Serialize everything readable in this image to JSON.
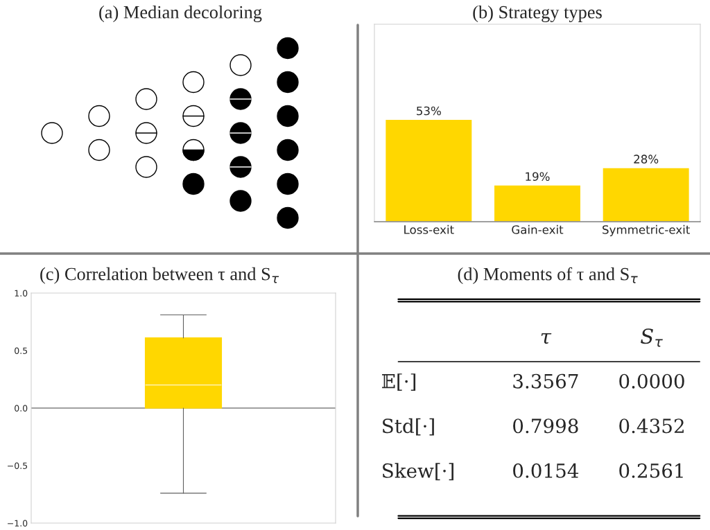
{
  "chart_data": [
    {
      "type": "other",
      "title": "(a) Median decoloring"
    },
    {
      "type": "bar",
      "title": "(b) Strategy types",
      "categories": [
        "Loss-exit",
        "Gain-exit",
        "Symmetric-exit"
      ],
      "values": [
        53,
        19,
        28
      ],
      "color": "#ffd700",
      "value_labels": [
        "53%",
        "19%",
        "28%"
      ],
      "grid": false,
      "legend": false
    },
    {
      "type": "box",
      "title": "(c) Correlation between τ and S$_{τ}$",
      "categories": [
        null
      ],
      "boxes": [
        {
          "low": -0.74,
          "q1": 0.0,
          "median": 0.2,
          "q3": 0.61,
          "high": 0.81
        }
      ],
      "color": "#ffd700",
      "ylim": [
        -1.0,
        1.0
      ],
      "yticks": [
        {
          "value": -1.0,
          "label": "−1.0"
        },
        {
          "value": -0.5,
          "label": "−0.5"
        },
        {
          "value": 0.0,
          "label": "0.0"
        },
        {
          "value": 0.5,
          "label": "0.5"
        },
        {
          "value": 1.0,
          "label": "1.0"
        }
      ],
      "ref_lines": [
        {
          "axis": "y",
          "value": 0.0,
          "color": "#808080"
        }
      ],
      "grid": false,
      "legend": false
    },
    {
      "type": "other",
      "title": "(d) Moments of τ and S$_{τ}$",
      "annotations": [
        "τ",
        "S$_{τ}$",
        "𝔼[·]",
        "3.3567",
        "0.0000",
        "Std[·]",
        "0.7998",
        "0.4352",
        "Skew[·]",
        "0.0154",
        "0.2561"
      ]
    }
  ]
}
